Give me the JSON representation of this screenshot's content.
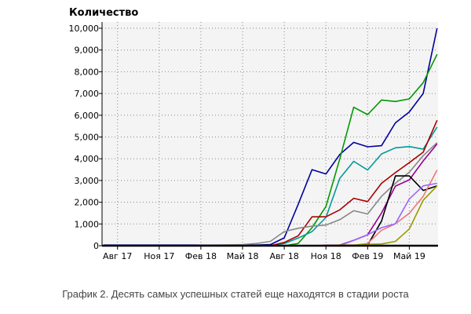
{
  "chart_data": {
    "type": "line",
    "title": "",
    "ylabel": "Количество",
    "xlabel": "",
    "caption": "График 2. Десять самых успешных статей еще находятся в стадии роста",
    "ylim": [
      0,
      10000
    ],
    "yticks": [
      "0",
      "1,000",
      "2,000",
      "3,000",
      "4,000",
      "5,000",
      "6,000",
      "7,000",
      "8,000",
      "9,000",
      "10,000"
    ],
    "xticks": [
      "Авг 17",
      "Ноя 17",
      "Фев 18",
      "Май 18",
      "Авг 18",
      "Ноя 18",
      "Фев 19",
      "Май 19"
    ],
    "x": [
      "2017-07",
      "2017-08",
      "2017-09",
      "2017-10",
      "2017-11",
      "2017-12",
      "2018-01",
      "2018-02",
      "2018-03",
      "2018-04",
      "2018-05",
      "2018-06",
      "2018-07",
      "2018-08",
      "2018-09",
      "2018-10",
      "2018-11",
      "2018-12",
      "2019-01",
      "2019-02",
      "2019-03",
      "2019-04",
      "2019-05",
      "2019-06",
      "2019-07"
    ],
    "grid": true,
    "background": "#f4f4f4",
    "series": [
      {
        "color": "#000099",
        "values": [
          30,
          30,
          30,
          30,
          30,
          30,
          30,
          30,
          30,
          30,
          30,
          30,
          50,
          360,
          1900,
          3500,
          3300,
          4200,
          4750,
          4550,
          4600,
          5650,
          6150,
          7000,
          10000
        ]
      },
      {
        "color": "#009900",
        "values": [
          0,
          0,
          0,
          0,
          0,
          0,
          0,
          0,
          0,
          0,
          0,
          0,
          0,
          0,
          100,
          830,
          1800,
          4000,
          6370,
          6030,
          6700,
          6630,
          6750,
          7500,
          8800
        ]
      },
      {
        "color": "#009999",
        "values": [
          0,
          0,
          0,
          0,
          0,
          0,
          0,
          0,
          0,
          0,
          0,
          0,
          0,
          100,
          350,
          650,
          1300,
          3100,
          3880,
          3480,
          4220,
          4500,
          4560,
          4440,
          5460
        ]
      },
      {
        "color": "#aa0000",
        "values": [
          0,
          0,
          0,
          0,
          0,
          0,
          0,
          0,
          0,
          0,
          0,
          0,
          0,
          150,
          450,
          1330,
          1330,
          1650,
          2180,
          2030,
          2870,
          3360,
          3820,
          4300,
          5770
        ]
      },
      {
        "color": "#888888",
        "values": [
          0,
          0,
          0,
          0,
          0,
          0,
          0,
          20,
          30,
          40,
          50,
          100,
          200,
          650,
          800,
          900,
          950,
          1200,
          1610,
          1460,
          2270,
          2870,
          3380,
          4140,
          4740
        ]
      },
      {
        "color": "#990099",
        "values": [
          0,
          0,
          0,
          0,
          0,
          0,
          0,
          0,
          0,
          0,
          0,
          0,
          0,
          0,
          0,
          0,
          20,
          30,
          250,
          500,
          1500,
          2740,
          3030,
          3900,
          4680
        ]
      },
      {
        "color": "#000000",
        "values": [
          0,
          0,
          0,
          0,
          0,
          0,
          0,
          0,
          0,
          0,
          0,
          0,
          0,
          0,
          0,
          0,
          0,
          0,
          0,
          30,
          1130,
          3210,
          3210,
          2540,
          2750
        ]
      },
      {
        "color": "#ee7777",
        "values": [
          0,
          0,
          0,
          0,
          0,
          0,
          0,
          0,
          0,
          0,
          0,
          0,
          0,
          0,
          0,
          0,
          0,
          0,
          20,
          100,
          710,
          1010,
          1490,
          2270,
          3480
        ]
      },
      {
        "color": "#9966ff",
        "values": [
          0,
          0,
          0,
          0,
          0,
          0,
          0,
          0,
          0,
          0,
          0,
          0,
          0,
          0,
          0,
          0,
          0,
          0,
          250,
          500,
          830,
          1010,
          2150,
          2750,
          2870
        ]
      },
      {
        "color": "#999900",
        "values": [
          0,
          0,
          0,
          0,
          0,
          0,
          0,
          0,
          0,
          0,
          0,
          0,
          0,
          0,
          0,
          0,
          0,
          30,
          30,
          60,
          80,
          200,
          770,
          2090,
          2750
        ]
      }
    ]
  }
}
